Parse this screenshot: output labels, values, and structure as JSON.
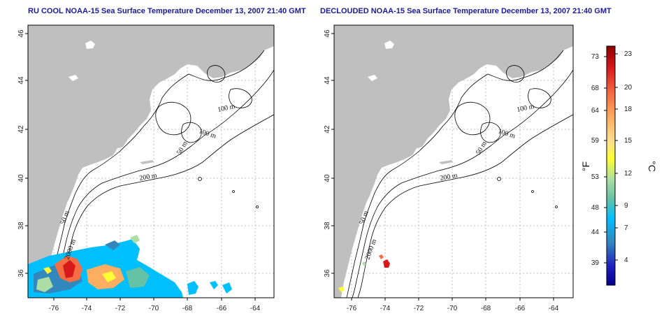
{
  "panels": [
    {
      "title": "RU COOL NOAA-15 Sea Surface Temperature December 13, 2007 21:40 GMT",
      "contour_labels": [
        "100 m",
        "100 m",
        "50 m",
        "200 m",
        "50 m",
        "2000 m"
      ],
      "lat_ticks": [
        "36",
        "38",
        "40",
        "42",
        "44",
        "46"
      ],
      "lon_ticks": [
        "-76",
        "-74",
        "-72",
        "-70",
        "-68",
        "-66",
        "-64"
      ]
    },
    {
      "title": "DECLOUDED NOAA-15 Sea Surface Temperature December 13, 2007 21:40 GMT",
      "contour_labels": [
        "100 m",
        "100 m",
        "50 m",
        "200 m",
        "50 m",
        "2000 m"
      ],
      "lat_ticks": [
        "36",
        "38",
        "40",
        "42",
        "44",
        "46"
      ],
      "lon_ticks": [
        "-76",
        "-74",
        "-72",
        "-70",
        "-68",
        "-66",
        "-64"
      ]
    }
  ],
  "colorbar": {
    "fahrenheit_label": "°F",
    "celsius_label": "°C",
    "fahrenheit_ticks": [
      "73",
      "68",
      "64",
      "59",
      "53",
      "48",
      "44",
      "39"
    ],
    "celsius_ticks": [
      "23",
      "20",
      "18",
      "15",
      "12",
      "9",
      "7",
      "4"
    ],
    "gradient_colors": [
      "#8b0000",
      "#d7191c",
      "#f46d43",
      "#fdae61",
      "#fee090",
      "#ffff33",
      "#abdda4",
      "#66c2a5",
      "#00bfff",
      "#3288bd",
      "#2020c0",
      "#00008b"
    ]
  },
  "map_colors": {
    "land": "#bfbfbf",
    "ocean": "#ffffff",
    "contour": "#000000",
    "grid": "#b0b0b0"
  }
}
